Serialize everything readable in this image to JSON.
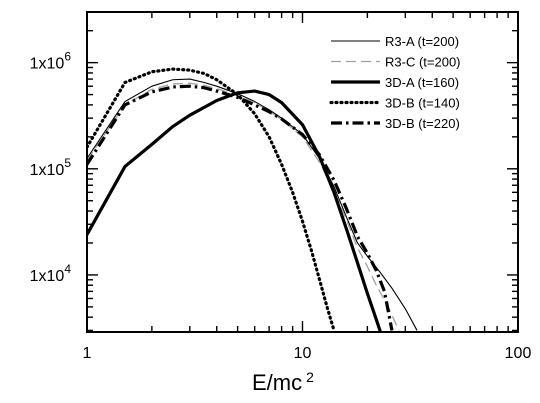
{
  "chart_data": {
    "type": "line",
    "title": "",
    "xlabel": "E/mc",
    "xlabel_sup": "2",
    "ylabel": "",
    "xscale": "log",
    "yscale": "log",
    "xlim": [
      1,
      100
    ],
    "ylim": [
      2900,
      3000000
    ],
    "grid": false,
    "legend_position": "top-right",
    "x_ticks": [
      {
        "value": 1,
        "label": "1"
      },
      {
        "value": 10,
        "label": "10"
      },
      {
        "value": 100,
        "label": "100"
      }
    ],
    "y_ticks": [
      {
        "value": 10000,
        "base": "1x10",
        "exp": "4"
      },
      {
        "value": 100000,
        "base": "1x10",
        "exp": "5"
      },
      {
        "value": 1000000,
        "base": "1x10",
        "exp": "6"
      }
    ],
    "series": [
      {
        "name": "R3-A (t=200)",
        "color": "#000000",
        "width": 1.1,
        "dash": "",
        "points": [
          [
            1,
            125000
          ],
          [
            1.5,
            430000
          ],
          [
            2,
            600000
          ],
          [
            2.5,
            690000
          ],
          [
            3,
            700000
          ],
          [
            3.5,
            650000
          ],
          [
            4,
            600000
          ],
          [
            5,
            510000
          ],
          [
            6,
            430000
          ],
          [
            7,
            360000
          ],
          [
            8,
            300000
          ],
          [
            10,
            210000
          ],
          [
            12,
            125000
          ],
          [
            14,
            68000
          ],
          [
            16,
            35000
          ],
          [
            18,
            20000
          ],
          [
            20,
            15000
          ],
          [
            23,
            10500
          ],
          [
            26,
            7500
          ],
          [
            30,
            4800
          ],
          [
            34,
            3000
          ]
        ]
      },
      {
        "name": "R3-C (t=200)",
        "color": "#a0a0a0",
        "width": 1.3,
        "dash": "10,5",
        "points": [
          [
            1,
            120000
          ],
          [
            1.5,
            400000
          ],
          [
            2,
            560000
          ],
          [
            2.5,
            630000
          ],
          [
            3,
            640000
          ],
          [
            3.5,
            610000
          ],
          [
            4,
            570000
          ],
          [
            5,
            490000
          ],
          [
            6,
            420000
          ],
          [
            7,
            350000
          ],
          [
            8,
            290000
          ],
          [
            10,
            200000
          ],
          [
            12,
            115000
          ],
          [
            14,
            62000
          ],
          [
            16,
            33000
          ],
          [
            18,
            18000
          ],
          [
            20,
            12000
          ],
          [
            22,
            8000
          ],
          [
            25,
            5000
          ],
          [
            28,
            3000
          ]
        ]
      },
      {
        "name": "3D-A (t=160)",
        "color": "#000000",
        "width": 3.2,
        "dash": "",
        "points": [
          [
            1,
            24000
          ],
          [
            1.5,
            105000
          ],
          [
            2,
            170000
          ],
          [
            2.5,
            250000
          ],
          [
            3,
            320000
          ],
          [
            4,
            440000
          ],
          [
            5,
            520000
          ],
          [
            6,
            540000
          ],
          [
            7,
            500000
          ],
          [
            8,
            420000
          ],
          [
            10,
            260000
          ],
          [
            12,
            130000
          ],
          [
            14,
            60000
          ],
          [
            16,
            27000
          ],
          [
            18,
            13000
          ],
          [
            20,
            6700
          ],
          [
            22,
            3800
          ],
          [
            23,
            2900
          ]
        ]
      },
      {
        "name": "3D-B (t=140)",
        "color": "#000000",
        "width": 3.2,
        "dash": "1,4",
        "points": [
          [
            1,
            160000
          ],
          [
            1.5,
            650000
          ],
          [
            2,
            820000
          ],
          [
            2.5,
            870000
          ],
          [
            3,
            850000
          ],
          [
            3.5,
            790000
          ],
          [
            4,
            690000
          ],
          [
            5,
            500000
          ],
          [
            6,
            330000
          ],
          [
            7,
            200000
          ],
          [
            8,
            110000
          ],
          [
            9,
            60000
          ],
          [
            10,
            32000
          ],
          [
            11,
            17000
          ],
          [
            12,
            9000
          ],
          [
            13,
            5000
          ],
          [
            14,
            3000
          ]
        ]
      },
      {
        "name": "3D-B (t=220)",
        "color": "#000000",
        "width": 3.2,
        "dash": "11,4,2.5,4",
        "points": [
          [
            1,
            110000
          ],
          [
            1.5,
            400000
          ],
          [
            2,
            530000
          ],
          [
            2.5,
            590000
          ],
          [
            3,
            600000
          ],
          [
            3.5,
            580000
          ],
          [
            4,
            540000
          ],
          [
            5,
            470000
          ],
          [
            6,
            400000
          ],
          [
            7,
            345000
          ],
          [
            8,
            295000
          ],
          [
            10,
            210000
          ],
          [
            12,
            135000
          ],
          [
            14,
            78000
          ],
          [
            16,
            42000
          ],
          [
            18,
            23000
          ],
          [
            20,
            16000
          ],
          [
            22,
            11000
          ],
          [
            24,
            7000
          ],
          [
            26,
            3000
          ]
        ]
      }
    ]
  }
}
